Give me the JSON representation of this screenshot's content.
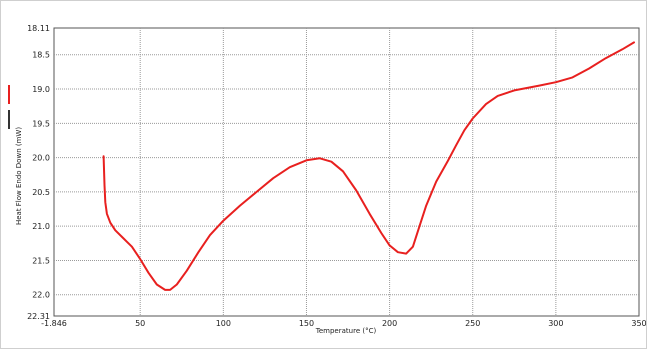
{
  "chart_data": {
    "type": "line",
    "xlabel": "Temperature (°C)",
    "ylabel": "Heat Flow Endo Down (mW)",
    "xlim": [
      -1.846,
      350
    ],
    "ylim": [
      22.31,
      18.11
    ],
    "y_inverted": true,
    "grid": true,
    "x_ticks": [
      {
        "value": -1.846,
        "label": "-1.846"
      },
      {
        "value": 50,
        "label": "50"
      },
      {
        "value": 100,
        "label": "100"
      },
      {
        "value": 150,
        "label": "150"
      },
      {
        "value": 200,
        "label": "200"
      },
      {
        "value": 250,
        "label": "250"
      },
      {
        "value": 300,
        "label": "300"
      },
      {
        "value": 350,
        "label": "350"
      }
    ],
    "y_ticks": [
      {
        "value": 18.11,
        "label": "18.11"
      },
      {
        "value": 18.5,
        "label": "18.5"
      },
      {
        "value": 19.0,
        "label": "19.0"
      },
      {
        "value": 19.5,
        "label": "19.5"
      },
      {
        "value": 20.0,
        "label": "20.0"
      },
      {
        "value": 20.5,
        "label": "20.5"
      },
      {
        "value": 21.0,
        "label": "21.0"
      },
      {
        "value": 21.5,
        "label": "21.5"
      },
      {
        "value": 22.0,
        "label": "22.0"
      },
      {
        "value": 22.31,
        "label": "22.31"
      }
    ],
    "legend": {
      "placement": "left",
      "items": [
        {
          "color": "#e8201f"
        },
        {
          "color": "#333333"
        }
      ]
    },
    "series": [
      {
        "color": "#e8201f",
        "points": [
          [
            28,
            19.98
          ],
          [
            28.5,
            20.4
          ],
          [
            29,
            20.65
          ],
          [
            30,
            20.82
          ],
          [
            32,
            20.95
          ],
          [
            35,
            21.06
          ],
          [
            40,
            21.18
          ],
          [
            45,
            21.3
          ],
          [
            50,
            21.48
          ],
          [
            55,
            21.68
          ],
          [
            60,
            21.85
          ],
          [
            65,
            21.93
          ],
          [
            68,
            21.93
          ],
          [
            72,
            21.85
          ],
          [
            78,
            21.65
          ],
          [
            85,
            21.38
          ],
          [
            92,
            21.13
          ],
          [
            100,
            20.92
          ],
          [
            110,
            20.7
          ],
          [
            120,
            20.5
          ],
          [
            130,
            20.3
          ],
          [
            140,
            20.14
          ],
          [
            150,
            20.04
          ],
          [
            158,
            20.01
          ],
          [
            165,
            20.06
          ],
          [
            172,
            20.2
          ],
          [
            180,
            20.48
          ],
          [
            188,
            20.82
          ],
          [
            195,
            21.1
          ],
          [
            200,
            21.28
          ],
          [
            205,
            21.38
          ],
          [
            210,
            21.4
          ],
          [
            214,
            21.3
          ],
          [
            218,
            21.0
          ],
          [
            222,
            20.7
          ],
          [
            228,
            20.35
          ],
          [
            235,
            20.05
          ],
          [
            240,
            19.82
          ],
          [
            245,
            19.6
          ],
          [
            250,
            19.43
          ],
          [
            258,
            19.22
          ],
          [
            265,
            19.1
          ],
          [
            275,
            19.02
          ],
          [
            290,
            18.95
          ],
          [
            300,
            18.9
          ],
          [
            310,
            18.83
          ],
          [
            320,
            18.7
          ],
          [
            330,
            18.55
          ],
          [
            340,
            18.42
          ],
          [
            347,
            18.32
          ]
        ]
      }
    ]
  }
}
